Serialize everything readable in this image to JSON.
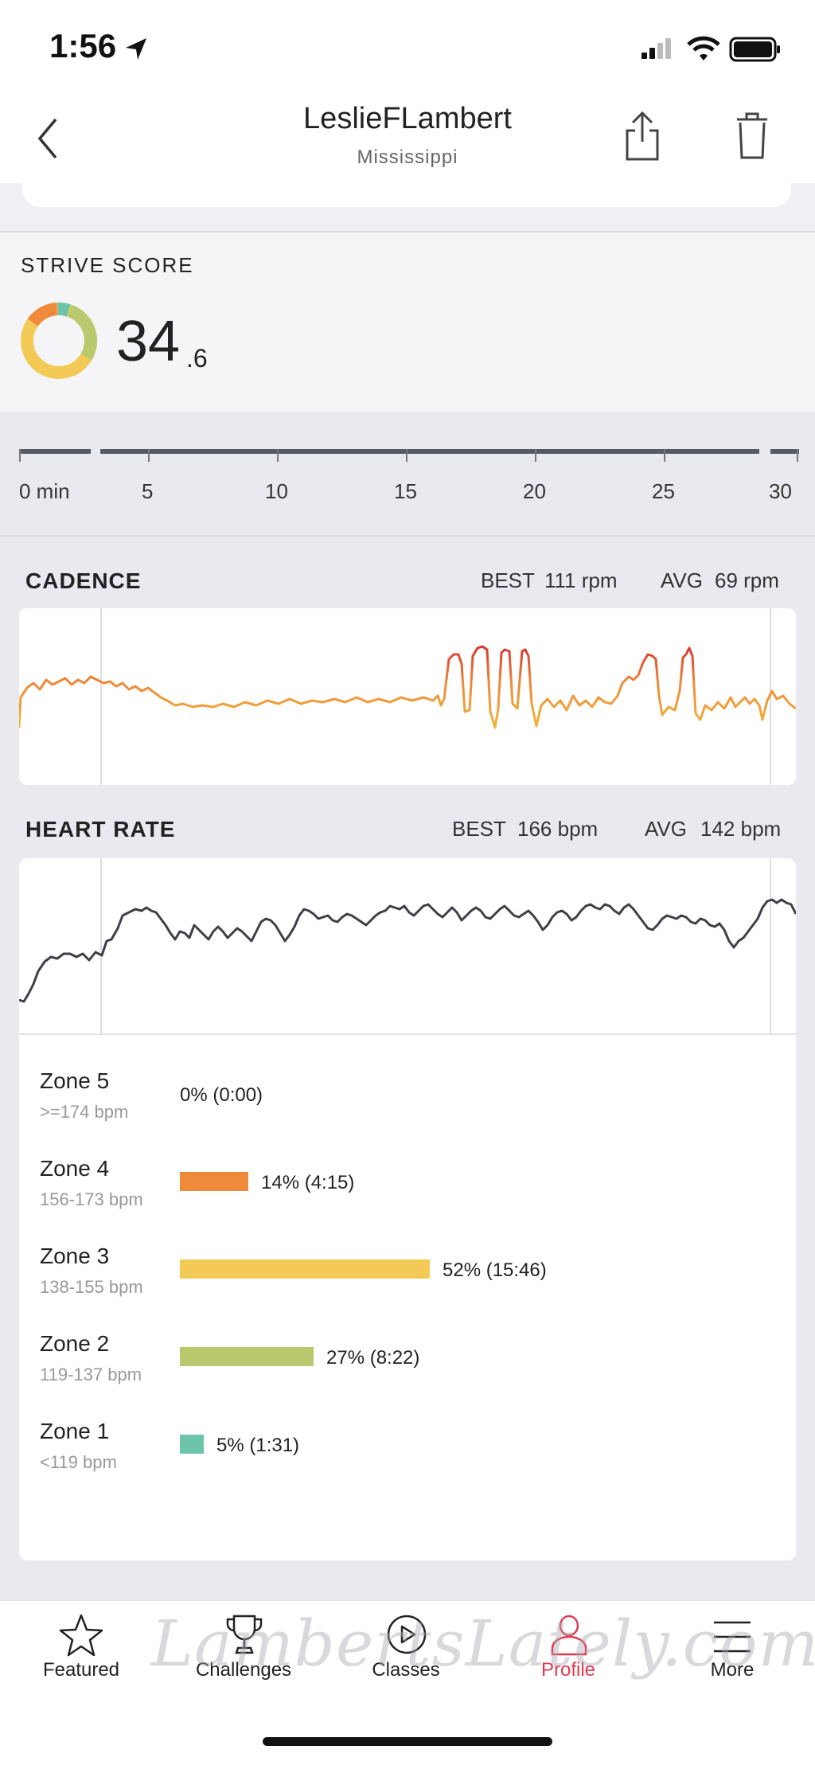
{
  "status_bar": {
    "time": "1:56"
  },
  "header": {
    "title": "LeslieFLambert",
    "subtitle": "Mississippi"
  },
  "strive": {
    "label": "STRIVE SCORE",
    "score_main": "34",
    "score_decimal": ".6"
  },
  "timeline": {
    "ticks": [
      "0 min",
      "5",
      "10",
      "15",
      "20",
      "25",
      "30"
    ]
  },
  "cadence": {
    "title": "CADENCE",
    "best_label": "BEST",
    "best_value": "111 rpm",
    "avg_label": "AVG",
    "avg_value": "69 rpm"
  },
  "heart_rate": {
    "title": "HEART RATE",
    "best_label": "BEST",
    "best_value": "166 bpm",
    "avg_label": "AVG",
    "avg_value": "142 bpm"
  },
  "zones": [
    {
      "name": "Zone 5",
      "range": ">=174 bpm",
      "pct": "0% (0:00)",
      "fraction": 0.0,
      "color": "#e5843a"
    },
    {
      "name": "Zone 4",
      "range": "156-173 bpm",
      "pct": "14% (4:15)",
      "fraction": 0.14,
      "color": "#ee8a3a"
    },
    {
      "name": "Zone 3",
      "range": "138-155 bpm",
      "pct": "52% (15:46)",
      "fraction": 0.52,
      "color": "#f2ca55"
    },
    {
      "name": "Zone 2",
      "range": "119-137 bpm",
      "pct": "27% (8:22)",
      "fraction": 0.27,
      "color": "#b9c96d"
    },
    {
      "name": "Zone 1",
      "range": "<119 bpm",
      "pct": "5% (1:31)",
      "fraction": 0.05,
      "color": "#6cc5aa"
    }
  ],
  "nav": {
    "featured": "Featured",
    "challenges": "Challenges",
    "classes": "Classes",
    "profile": "Profile",
    "more": "More"
  },
  "watermark": "LambertsLately.com",
  "colors": {
    "accent": "#e0394f",
    "cadence_line": "#ee8a3a",
    "hr_line": "#3d4047"
  }
}
